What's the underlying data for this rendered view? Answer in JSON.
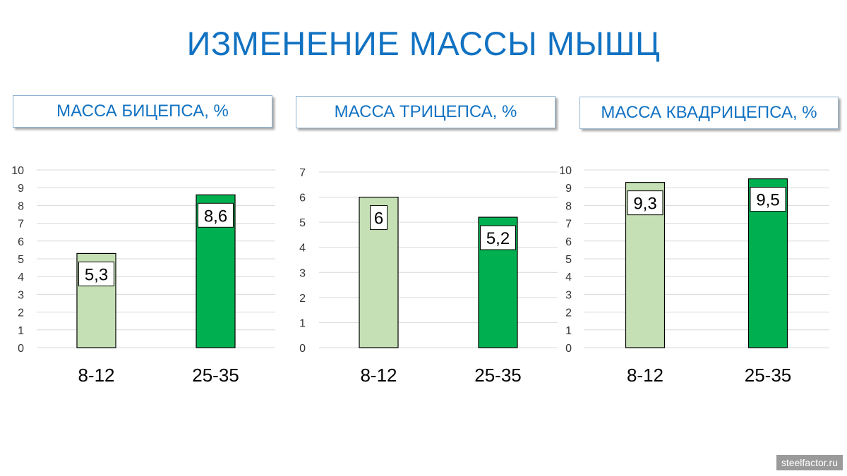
{
  "page": {
    "title": "ИЗМЕНЕНИЕ МАССЫ МЫШЦ",
    "watermark": "steelfactor.ru"
  },
  "colors": {
    "title": "#1172c2",
    "bar_light": "#c5e0b4",
    "bar_dark": "#00b050",
    "grid": "#d9d9d9"
  },
  "chart_data": [
    {
      "type": "bar",
      "title": "МАССА БИЦЕПСА, %",
      "categories": [
        "8-12",
        "25-35"
      ],
      "values": [
        5.3,
        8.6
      ],
      "value_labels": [
        "5,3",
        "8,6"
      ],
      "ylim": [
        0,
        10
      ],
      "yticks": [
        0,
        1,
        2,
        3,
        4,
        5,
        6,
        7,
        8,
        9,
        10
      ],
      "grid": true,
      "bar_colors": [
        "#c5e0b4",
        "#00b050"
      ]
    },
    {
      "type": "bar",
      "title": "МАССА ТРИЦЕПСА, %",
      "categories": [
        "8-12",
        "25-35"
      ],
      "values": [
        6,
        5.2
      ],
      "value_labels": [
        "6",
        "5,2"
      ],
      "ylim": [
        0,
        7
      ],
      "yticks": [
        0,
        1,
        2,
        3,
        4,
        5,
        6,
        7
      ],
      "grid": true,
      "bar_colors": [
        "#c5e0b4",
        "#00b050"
      ]
    },
    {
      "type": "bar",
      "title": "МАССА КВАДРИЦЕПСА, %",
      "categories": [
        "8-12",
        "25-35"
      ],
      "values": [
        9.3,
        9.5
      ],
      "value_labels": [
        "9,3",
        "9,5"
      ],
      "ylim": [
        0,
        10
      ],
      "yticks": [
        0,
        1,
        2,
        3,
        4,
        5,
        6,
        7,
        8,
        9,
        10
      ],
      "grid": true,
      "bar_colors": [
        "#c5e0b4",
        "#00b050"
      ]
    }
  ]
}
